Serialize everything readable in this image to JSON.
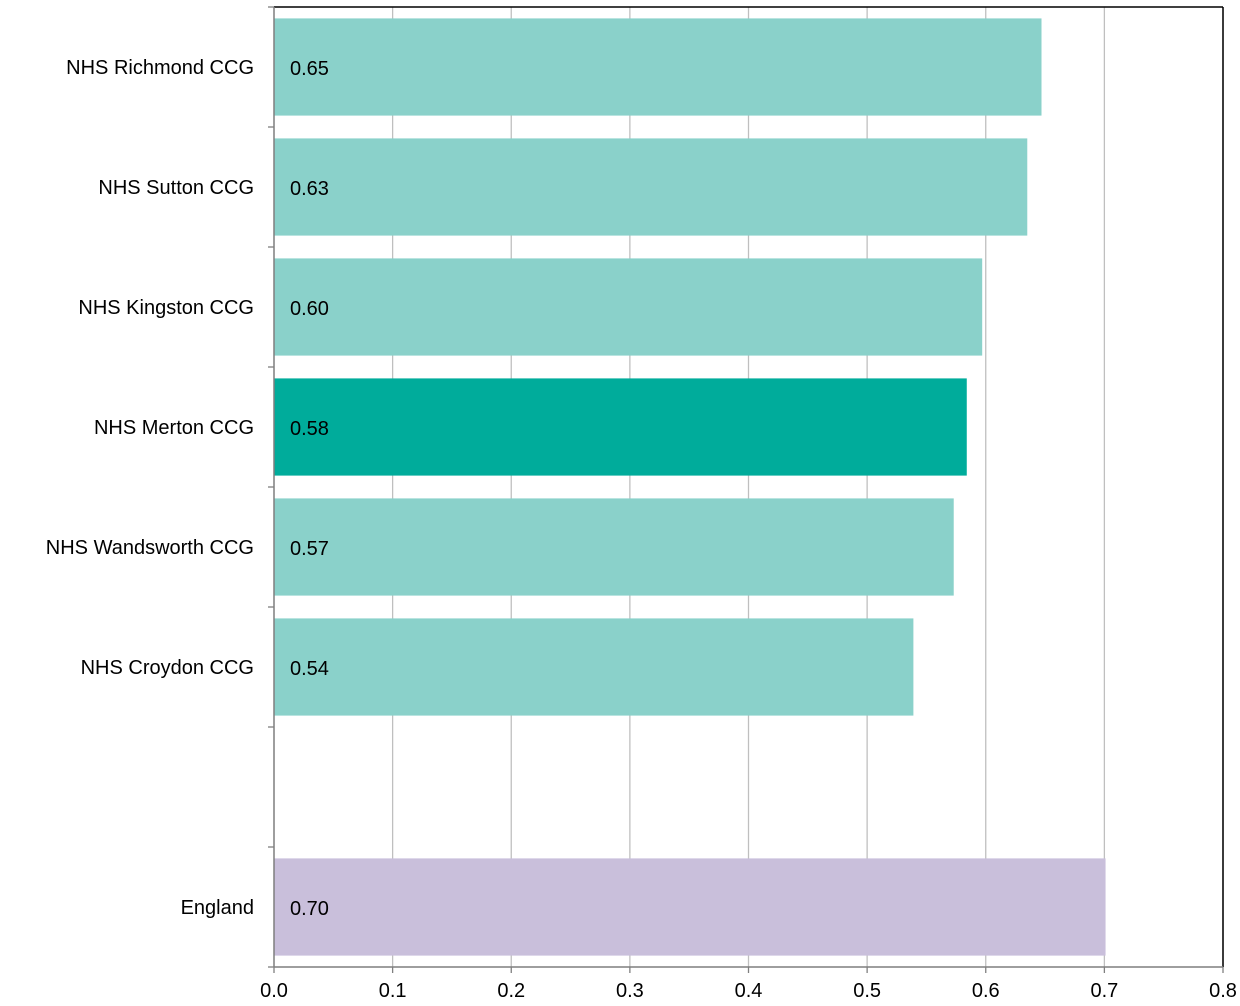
{
  "chart_data": {
    "type": "bar",
    "orientation": "horizontal",
    "title": "",
    "xlabel": "",
    "ylabel": "",
    "xlim": [
      0,
      0.8
    ],
    "xticks": [
      "0.0",
      "0.1",
      "0.2",
      "0.3",
      "0.4",
      "0.5",
      "0.6",
      "0.7",
      "0.8"
    ],
    "grid": "vertical",
    "legend": "none",
    "bars": [
      {
        "category": "NHS Richmond CCG",
        "value": 0.647,
        "label": "0.65",
        "color": "#8ad1ca"
      },
      {
        "category": "NHS Sutton CCG",
        "value": 0.635,
        "label": "0.63",
        "color": "#8ad1ca"
      },
      {
        "category": "NHS Kingston CCG",
        "value": 0.597,
        "label": "0.60",
        "color": "#8ad1ca"
      },
      {
        "category": "NHS Merton CCG",
        "value": 0.584,
        "label": "0.58",
        "color": "#00ac9b"
      },
      {
        "category": "NHS Wandsworth CCG",
        "value": 0.573,
        "label": "0.57",
        "color": "#8ad1ca"
      },
      {
        "category": "NHS Croydon CCG",
        "value": 0.539,
        "label": "0.54",
        "color": "#8ad1ca"
      },
      {
        "category": "",
        "value": null,
        "label": "",
        "color": ""
      },
      {
        "category": "England",
        "value": 0.701,
        "label": "0.70",
        "color": "#c9bfdb"
      }
    ],
    "colors": {
      "comparator": "#8ad1ca",
      "highlight": "#00ac9b",
      "england": "#c9bfdb",
      "grid": "#bfbfbf",
      "axis": "#7f7f7f"
    }
  }
}
